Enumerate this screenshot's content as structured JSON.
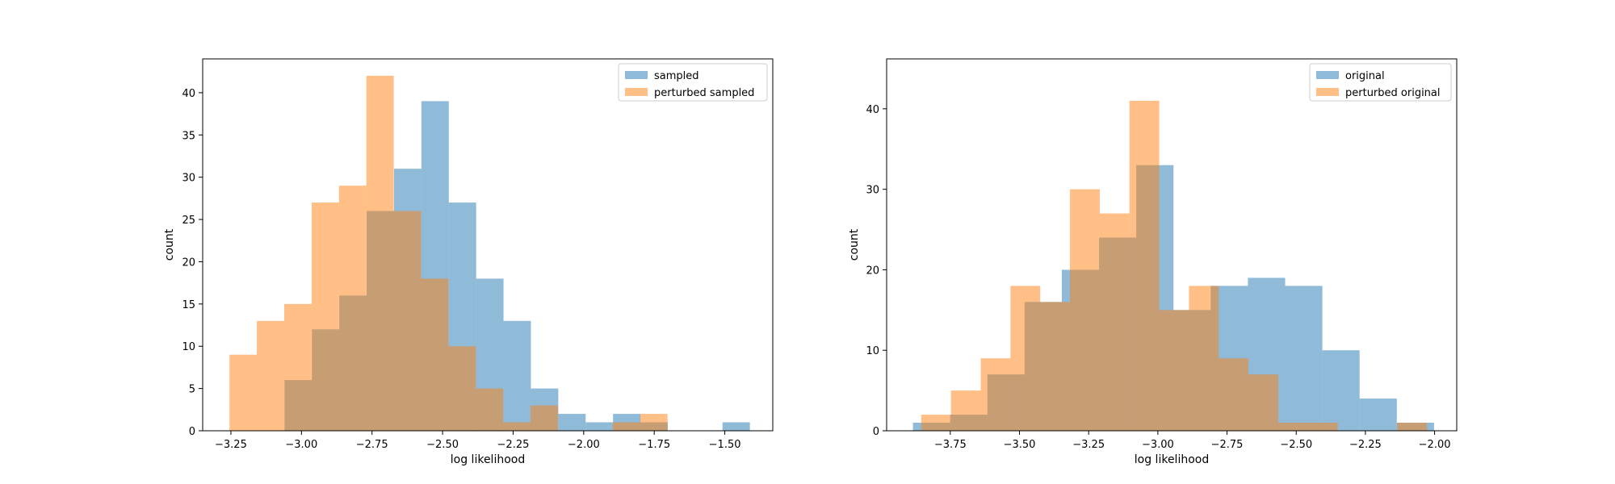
{
  "colors": {
    "series_a": "#1f77b4",
    "series_b": "#ff7f0e",
    "axis": "#000000"
  },
  "chart_data": [
    {
      "type": "histogram",
      "xlabel": "log likelihood",
      "ylabel": "count",
      "xlim": [
        -3.35,
        -1.33
      ],
      "ylim": [
        0,
        44
      ],
      "xticks": [
        -3.25,
        -3.0,
        -2.75,
        -2.5,
        -2.25,
        -2.0,
        -1.75,
        -1.5
      ],
      "xtick_labels": [
        "−3.25",
        "−3.00",
        "−2.75",
        "−2.50",
        "−2.25",
        "−2.00",
        "−1.75",
        "−1.50"
      ],
      "yticks": [
        0,
        5,
        10,
        15,
        20,
        25,
        30,
        35,
        40
      ],
      "legend_position": "top-right",
      "alpha": 0.5,
      "series": [
        {
          "name": "sampled",
          "color": "#1f77b4",
          "bin_edges": [
            -3.06,
            -2.963,
            -2.866,
            -2.769,
            -2.672,
            -2.575,
            -2.478,
            -2.381,
            -2.284,
            -2.187,
            -2.09,
            -1.993,
            -1.896,
            -1.799,
            -1.702,
            -1.605,
            -1.508,
            -1.411,
            -1.314
          ],
          "counts": [
            6,
            12,
            16,
            26,
            31,
            39,
            27,
            18,
            13,
            5,
            2,
            1,
            2,
            1,
            0,
            0,
            1,
            0
          ]
        },
        {
          "name": "perturbed sampled",
          "color": "#ff7f0e",
          "bin_edges": [
            -3.255,
            -3.158,
            -3.061,
            -2.964,
            -2.867,
            -2.77,
            -2.673,
            -2.576,
            -2.479,
            -2.382,
            -2.285,
            -2.188,
            -2.091,
            -1.994,
            -1.897,
            -1.8,
            -1.703
          ],
          "counts": [
            9,
            13,
            15,
            27,
            29,
            42,
            26,
            18,
            10,
            5,
            1,
            3,
            0,
            0,
            1,
            2
          ]
        }
      ]
    },
    {
      "type": "histogram",
      "xlabel": "log likelihood",
      "ylabel": "count",
      "xlim": [
        -3.98,
        -1.92
      ],
      "ylim": [
        0,
        46.2
      ],
      "xticks": [
        -3.75,
        -3.5,
        -3.25,
        -3.0,
        -2.75,
        -2.5,
        -2.25,
        -2.0
      ],
      "xtick_labels": [
        "−3.75",
        "−3.50",
        "−3.25",
        "−3.00",
        "−2.75",
        "−2.50",
        "−2.25",
        "−2.00"
      ],
      "yticks": [
        0,
        10,
        20,
        30,
        40
      ],
      "legend_position": "top-right",
      "alpha": 0.5,
      "series": [
        {
          "name": "original",
          "color": "#1f77b4",
          "bin_edges": [
            -3.885,
            -3.7505,
            -3.616,
            -3.4815,
            -3.347,
            -3.2125,
            -3.078,
            -2.9435,
            -2.809,
            -2.6745,
            -2.54,
            -2.4055,
            -2.271,
            -2.1365,
            -2.002
          ],
          "counts": [
            1,
            2,
            7,
            16,
            20,
            24,
            33,
            15,
            18,
            19,
            18,
            10,
            4,
            1
          ]
        },
        {
          "name": "perturbed original",
          "color": "#ff7f0e",
          "bin_edges": [
            -3.855,
            -3.7475,
            -3.64,
            -3.5325,
            -3.425,
            -3.3175,
            -3.21,
            -3.1025,
            -2.995,
            -2.8875,
            -2.78,
            -2.6725,
            -2.565,
            -2.4575,
            -2.35,
            -2.2425,
            -2.135,
            -2.0275
          ],
          "counts": [
            2,
            5,
            9,
            18,
            16,
            30,
            27,
            41,
            15,
            18,
            9,
            7,
            1,
            1,
            0,
            0,
            1
          ]
        }
      ]
    }
  ]
}
